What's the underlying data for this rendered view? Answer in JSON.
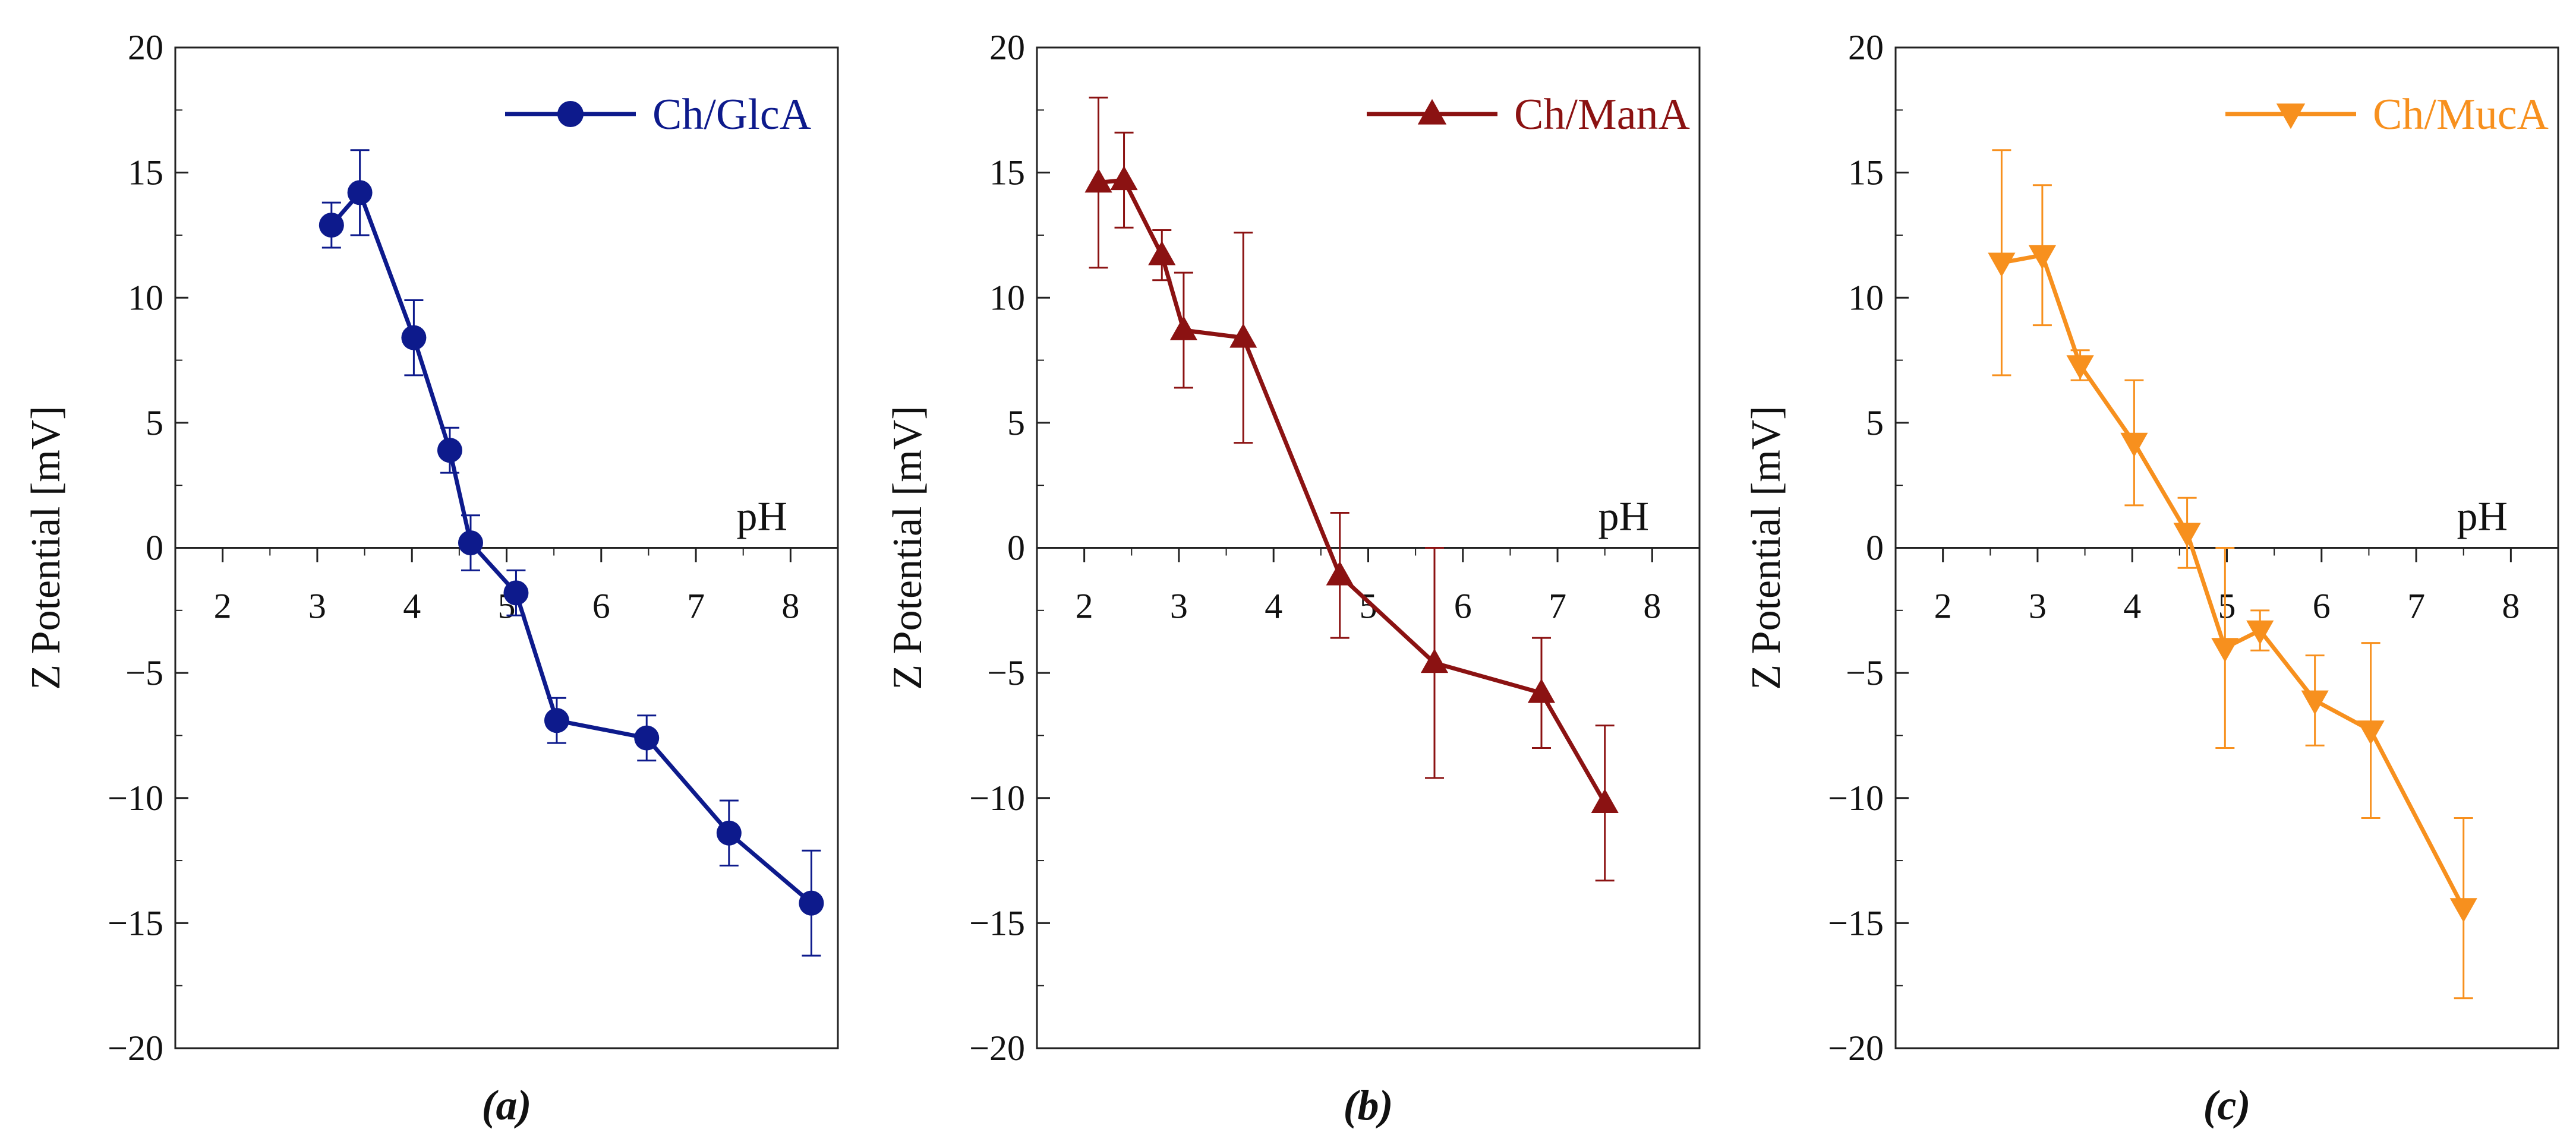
{
  "chart_data": [
    {
      "type": "line",
      "panel_label": "(a)",
      "ylabel": "Z Potential [mV]",
      "xlabel": "pH",
      "xlim": [
        1.5,
        8.5
      ],
      "ylim": [
        -20,
        20
      ],
      "x_ticks": [
        2,
        3,
        4,
        5,
        6,
        7,
        8
      ],
      "y_ticks": [
        -20,
        -15,
        -10,
        -5,
        0,
        5,
        10,
        15,
        20
      ],
      "legend": "top-right",
      "color": "#0d1a8c",
      "marker": "circle",
      "series": [
        {
          "name": "Ch/GlcA",
          "x": [
            3.15,
            3.45,
            4.02,
            4.4,
            4.62,
            5.1,
            5.53,
            6.48,
            7.35,
            8.22
          ],
          "y": [
            12.9,
            14.2,
            8.4,
            3.9,
            0.2,
            -1.8,
            -6.9,
            -7.6,
            -11.4,
            -14.2
          ],
          "err": [
            0.9,
            1.7,
            1.5,
            0.9,
            1.1,
            0.9,
            0.9,
            0.9,
            1.3,
            2.1
          ]
        }
      ]
    },
    {
      "type": "line",
      "panel_label": "(b)",
      "ylabel": "Z Potential [mV]",
      "xlabel": "pH",
      "xlim": [
        1.5,
        8.5
      ],
      "ylim": [
        -20,
        20
      ],
      "x_ticks": [
        2,
        3,
        4,
        5,
        6,
        7,
        8
      ],
      "y_ticks": [
        -20,
        -15,
        -10,
        -5,
        0,
        5,
        10,
        15,
        20
      ],
      "legend": "top-right",
      "color": "#8b1212",
      "marker": "triangle-up",
      "series": [
        {
          "name": "Ch/ManA",
          "x": [
            2.15,
            2.42,
            2.82,
            3.05,
            3.68,
            4.7,
            5.7,
            6.83,
            7.5
          ],
          "y": [
            14.6,
            14.7,
            11.7,
            8.7,
            8.4,
            -1.1,
            -4.6,
            -5.8,
            -10.2
          ],
          "err": [
            3.4,
            1.9,
            1.0,
            2.3,
            4.2,
            2.5,
            4.6,
            2.2,
            3.1
          ]
        }
      ]
    },
    {
      "type": "line",
      "panel_label": "(c)",
      "ylabel": "Z Potential [mV]",
      "xlabel": "pH",
      "xlim": [
        1.5,
        8.5
      ],
      "ylim": [
        -20,
        20
      ],
      "x_ticks": [
        2,
        3,
        4,
        5,
        6,
        7,
        8
      ],
      "y_ticks": [
        -20,
        -15,
        -10,
        -5,
        0,
        5,
        10,
        15,
        20
      ],
      "legend": "top-right",
      "color": "#f7901e",
      "marker": "triangle-down",
      "series": [
        {
          "name": "Ch/MucA",
          "x": [
            2.62,
            3.05,
            3.45,
            4.02,
            4.58,
            4.98,
            5.35,
            5.93,
            6.52,
            7.5
          ],
          "y": [
            11.4,
            11.7,
            7.3,
            4.2,
            0.6,
            -4.0,
            -3.3,
            -6.1,
            -7.3,
            -14.4
          ],
          "err": [
            4.5,
            2.8,
            0.6,
            2.5,
            1.4,
            4.0,
            0.8,
            1.8,
            3.5,
            3.6
          ]
        }
      ]
    }
  ]
}
